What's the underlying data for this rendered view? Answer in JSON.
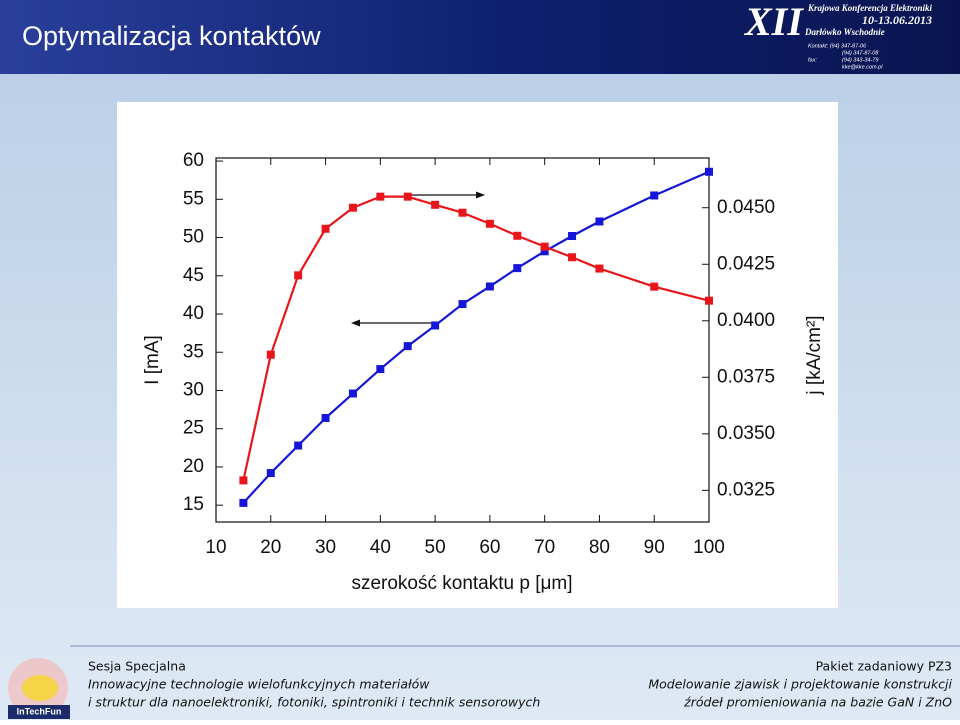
{
  "header": {
    "title": "Optymalizacja kontaktów",
    "banner": {
      "edition": "XII",
      "conference": "Krajowa Konferencja Elektroniki",
      "dates": "10-13.06.2013",
      "place": "Darłówko Wschodnie",
      "contact": [
        "Kontakt: (94) 347-87-06",
        "(94) 347-87-08",
        "fax:",
        "(94) 343-34-79",
        "kke@kke.com.pl"
      ]
    }
  },
  "chart_data": {
    "type": "line",
    "xlabel": "szerokość kontaktu p   [μm]",
    "ylabel": "I  [mA]",
    "y2label": "j  [kA/cm²]",
    "x": [
      15,
      20,
      25,
      30,
      35,
      40,
      45,
      50,
      55,
      60,
      65,
      70,
      75,
      80,
      90,
      100
    ],
    "series": [
      {
        "color": "#1616d8",
        "values": [
          15.3,
          19.2,
          22.8,
          26.4,
          29.6,
          32.8,
          35.8,
          38.5,
          41.3,
          43.6,
          46.0,
          48.2,
          50.2,
          52.1,
          55.5,
          58.6
        ]
      },
      {
        "color": "#e8161b",
        "axis": "y2",
        "values": [
          0.03294,
          0.0385,
          0.04201,
          0.04407,
          0.045,
          0.04549,
          0.04549,
          0.04513,
          0.04478,
          0.04429,
          0.04376,
          0.04328,
          0.04281,
          0.04231,
          0.04151,
          0.04089
        ]
      }
    ],
    "xlim": [
      10,
      100
    ],
    "xticks": [
      10,
      20,
      30,
      40,
      50,
      60,
      70,
      80,
      90,
      100
    ],
    "ylim": [
      12.8,
      60.4
    ],
    "yticks": [
      15,
      20,
      25,
      30,
      35,
      40,
      45,
      50,
      55,
      60
    ],
    "y2lim": [
      0.0311,
      0.0472
    ],
    "y2ticks": [
      {
        "value": 0.0325,
        "label": "0.0325"
      },
      {
        "value": 0.035,
        "label": "0.0350"
      },
      {
        "value": 0.0375,
        "label": "0.0375"
      },
      {
        "value": 0.04,
        "label": "0.0400"
      },
      {
        "value": 0.0425,
        "label": "0.0425"
      },
      {
        "value": 0.045,
        "label": "0.0450"
      }
    ]
  },
  "footer": {
    "logo": "InTechFun",
    "left": [
      "Sesja Specjalna",
      "Innowacyjne technologie wielofunkcyjnych materiałów",
      "i struktur dla nanoelektroniki, fotoniki, spintroniki i technik sensorowych"
    ],
    "right": [
      "Pakiet zadaniowy  PZ3",
      "Modelowanie zjawisk i projektowanie konstrukcji",
      "źródeł promieniowania na bazie GaN i ZnO"
    ]
  }
}
